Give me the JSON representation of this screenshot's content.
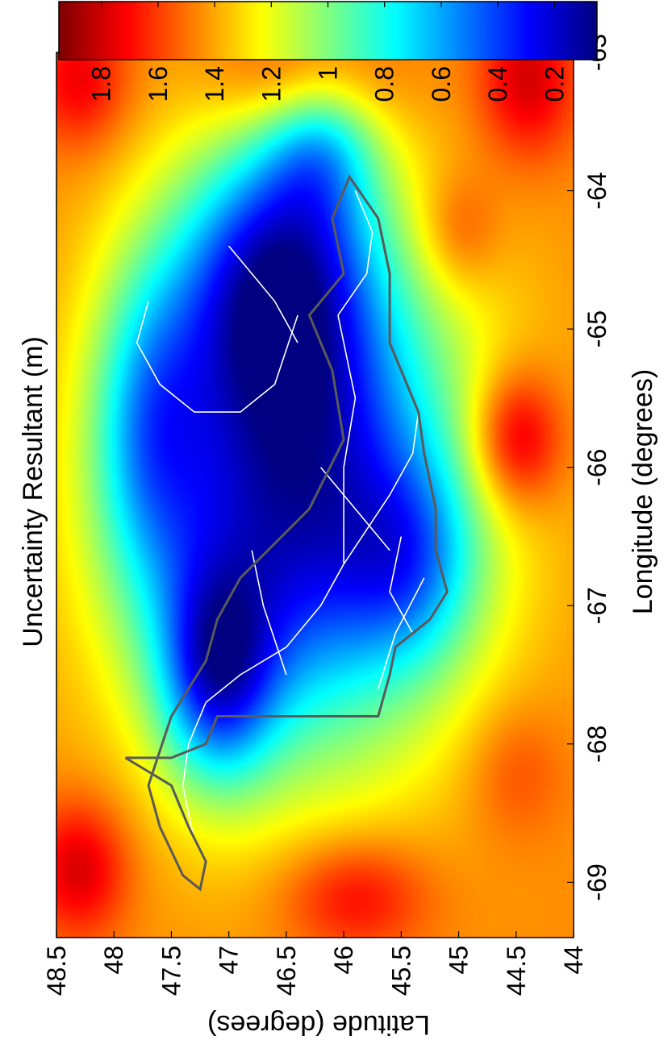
{
  "chart_data": {
    "type": "heatmap",
    "title": "Uncertainty Resultant (m)",
    "xlabel": "Longitude (degrees)",
    "ylabel": "Latitude (degrees)",
    "xlim": [
      -69.4,
      -63
    ],
    "ylim": [
      44,
      48.5
    ],
    "x_ticks": [
      -69,
      -68,
      -67,
      -66,
      -65,
      -64,
      -63
    ],
    "x_tick_labels": [
      "-69",
      "-68",
      "-67",
      "-66",
      "-65",
      "-64",
      "-63"
    ],
    "y_ticks": [
      48.5,
      48,
      47.5,
      47,
      46.5,
      46,
      45.5,
      45,
      44.5,
      44
    ],
    "y_tick_labels": [
      "48.5",
      "48",
      "47.5",
      "47",
      "46.5",
      "46",
      "45.5",
      "45",
      "44.5",
      "44"
    ],
    "colorbar": {
      "range": [
        0.05,
        1.95
      ],
      "ticks": [
        1.8,
        1.6,
        1.4,
        1.2,
        1,
        0.8,
        0.6,
        0.4,
        0.2
      ],
      "tick_labels": [
        "1.8",
        "1.6",
        "1.4",
        "1.2",
        "1",
        "0.8",
        "0.6",
        "0.4",
        "0.2"
      ],
      "colormap": "jet"
    },
    "orientation": "rotated 90° counter-clockwise",
    "grid": false,
    "baseline_value": 1.45,
    "field_components": [
      {
        "lon": -66.2,
        "lat": 46.4,
        "sx": 1.25,
        "sy": 1.0,
        "amp": -1.3
      },
      {
        "lon": -64.6,
        "lat": 46.6,
        "sx": 0.7,
        "sy": 0.6,
        "amp": -0.9
      },
      {
        "lon": -67.5,
        "lat": 47.1,
        "sx": 0.55,
        "sy": 0.35,
        "amp": -0.8
      },
      {
        "lon": -66.7,
        "lat": 45.4,
        "sx": 0.5,
        "sy": 0.4,
        "amp": -0.4
      },
      {
        "lon": -65.7,
        "lat": 47.7,
        "sx": 0.8,
        "sy": 0.35,
        "amp": -0.5
      },
      {
        "lon": -63.6,
        "lat": 46.2,
        "sx": 0.45,
        "sy": 0.35,
        "amp": -0.5
      },
      {
        "lon": -68.9,
        "lat": 48.3,
        "sx": 0.35,
        "sy": 0.3,
        "amp": 0.35
      },
      {
        "lon": -69.1,
        "lat": 45.9,
        "sx": 0.3,
        "sy": 0.45,
        "amp": 0.3
      },
      {
        "lon": -65.8,
        "lat": 44.5,
        "sx": 0.35,
        "sy": 0.28,
        "amp": 0.45
      },
      {
        "lon": -63.2,
        "lat": 44.4,
        "sx": 0.4,
        "sy": 0.3,
        "amp": 0.35
      },
      {
        "lon": -63.2,
        "lat": 46.3,
        "sx": 0.3,
        "sy": 0.5,
        "amp": 0.35
      },
      {
        "lon": -63.2,
        "lat": 48.3,
        "sx": 0.35,
        "sy": 0.3,
        "amp": 0.3
      },
      {
        "lon": -64.3,
        "lat": 45.0,
        "sx": 0.3,
        "sy": 0.25,
        "amp": 0.2
      },
      {
        "lon": -68.2,
        "lat": 44.5,
        "sx": 0.35,
        "sy": 0.3,
        "amp": 0.15
      }
    ],
    "region_outline": [
      [
        -68.1,
        47.9
      ],
      [
        -68.3,
        47.5
      ],
      [
        -68.6,
        47.35
      ],
      [
        -68.85,
        47.2
      ],
      [
        -69.05,
        47.25
      ],
      [
        -68.95,
        47.4
      ],
      [
        -68.6,
        47.6
      ],
      [
        -68.3,
        47.7
      ],
      [
        -67.8,
        47.5
      ],
      [
        -67.4,
        47.2
      ],
      [
        -67.1,
        47.1
      ],
      [
        -66.8,
        46.9
      ],
      [
        -66.3,
        46.3
      ],
      [
        -65.8,
        46.0
      ],
      [
        -65.3,
        46.1
      ],
      [
        -64.9,
        46.3
      ],
      [
        -64.6,
        46.0
      ],
      [
        -64.2,
        46.1
      ],
      [
        -63.9,
        45.95
      ],
      [
        -64.2,
        45.7
      ],
      [
        -64.6,
        45.6
      ],
      [
        -65.1,
        45.6
      ],
      [
        -65.3,
        45.5
      ],
      [
        -65.6,
        45.35
      ],
      [
        -65.9,
        45.3
      ],
      [
        -66.3,
        45.2
      ],
      [
        -66.6,
        45.2
      ],
      [
        -66.9,
        45.1
      ],
      [
        -67.1,
        45.25
      ],
      [
        -67.3,
        45.55
      ],
      [
        -67.5,
        45.6
      ],
      [
        -67.8,
        45.7
      ],
      [
        -67.8,
        46.2
      ],
      [
        -67.8,
        46.7
      ],
      [
        -67.8,
        47.1
      ],
      [
        -68.0,
        47.2
      ],
      [
        -68.1,
        47.5
      ],
      [
        -68.1,
        47.9
      ]
    ],
    "road_paths": [
      [
        [
          -68.7,
          47.3
        ],
        [
          -68.3,
          47.4
        ],
        [
          -68.0,
          47.35
        ],
        [
          -67.7,
          47.2
        ]
      ],
      [
        [
          -67.7,
          47.2
        ],
        [
          -67.5,
          46.9
        ],
        [
          -67.3,
          46.5
        ],
        [
          -67.0,
          46.2
        ],
        [
          -66.7,
          46.0
        ]
      ],
      [
        [
          -66.7,
          46.0
        ],
        [
          -66.2,
          45.6
        ],
        [
          -65.9,
          45.4
        ],
        [
          -65.6,
          45.35
        ]
      ],
      [
        [
          -66.7,
          46.0
        ],
        [
          -66.0,
          46.0
        ],
        [
          -65.5,
          45.9
        ],
        [
          -64.9,
          46.05
        ]
      ],
      [
        [
          -64.9,
          46.05
        ],
        [
          -64.6,
          45.8
        ],
        [
          -64.3,
          45.75
        ],
        [
          -64.0,
          45.9
        ]
      ],
      [
        [
          -67.6,
          45.7
        ],
        [
          -67.2,
          45.55
        ],
        [
          -66.8,
          45.3
        ]
      ],
      [
        [
          -65.6,
          47.3
        ],
        [
          -65.4,
          47.6
        ],
        [
          -65.1,
          47.8
        ],
        [
          -64.8,
          47.7
        ]
      ],
      [
        [
          -65.6,
          47.3
        ],
        [
          -65.6,
          46.9
        ],
        [
          -65.4,
          46.6
        ],
        [
          -64.9,
          46.4
        ]
      ],
      [
        [
          -67.5,
          46.5
        ],
        [
          -67.0,
          46.7
        ],
        [
          -66.6,
          46.8
        ]
      ],
      [
        [
          -66.6,
          45.6
        ],
        [
          -66.3,
          45.9
        ],
        [
          -66.0,
          46.2
        ]
      ],
      [
        [
          -67.2,
          45.4
        ],
        [
          -66.9,
          45.6
        ],
        [
          -66.5,
          45.5
        ]
      ],
      [
        [
          -65.1,
          46.4
        ],
        [
          -64.8,
          46.6
        ],
        [
          -64.6,
          46.8
        ],
        [
          -64.4,
          47.0
        ]
      ]
    ]
  }
}
